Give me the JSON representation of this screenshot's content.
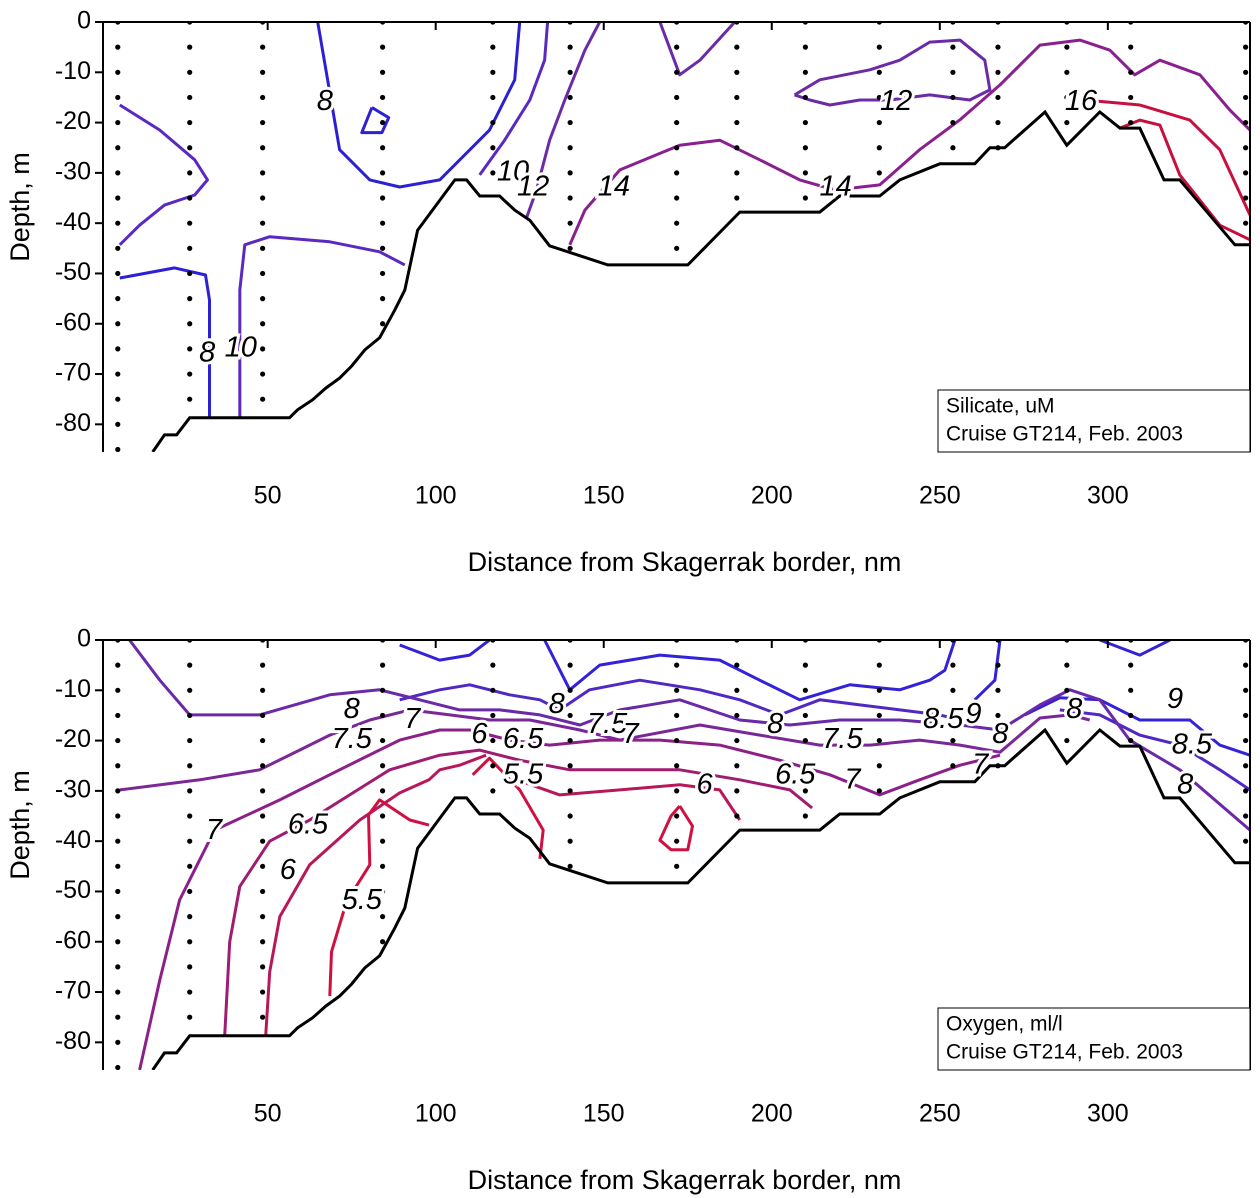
{
  "chart_data": [
    {
      "type": "contour",
      "xlabel": "Distance from Skagerrak border, nm",
      "ylabel": "Depth, m",
      "annotations": [
        "Silicate, uM",
        "Cruise GT214, Feb. 2003"
      ],
      "xlim": [
        1,
        342.3
      ],
      "ylim": [
        -85.5,
        0
      ],
      "xticks": [
        50,
        100,
        150,
        200,
        250,
        300
      ],
      "yticks": [
        0,
        -10,
        -20,
        -30,
        -40,
        -50,
        -60,
        -70,
        -80
      ],
      "stations": [
        5.4,
        26.8,
        48.5,
        84.2,
        117,
        140,
        171.7,
        189.6,
        210,
        232,
        253.9,
        267.3,
        287.8,
        306.8,
        341
      ],
      "sample_depths": [
        0,
        -5,
        -10,
        -15,
        -20,
        -25,
        -30,
        -35,
        -40,
        -45,
        -50,
        -55,
        -60,
        -65,
        -70,
        -75,
        -80,
        -85
      ],
      "bottom": {
        "color": "#000000",
        "x": [
          15.8,
          19.3,
          22.9,
          26.8,
          56.5,
          58.9,
          63.4,
          67.3,
          71.4,
          75,
          78.9,
          83.3,
          87.8,
          90.8,
          94.6,
          105.7,
          109.2,
          113.1,
          119,
          123.5,
          128,
          133.9,
          151.2,
          175,
          190.5,
          214.3,
          220.2,
          232.1,
          238.1,
          250,
          260.4,
          264.9,
          269.3,
          281.3,
          287.8,
          297.6,
          303.6,
          309.5,
          316.7,
          321.4,
          337.8,
          342.3
        ],
        "y": [
          -85.5,
          -82.1,
          -82.1,
          -78.7,
          -78.7,
          -77.1,
          -75.1,
          -72.8,
          -70.8,
          -68.4,
          -65.2,
          -62.8,
          -57.3,
          -53.3,
          -41.4,
          -31.4,
          -31.4,
          -34.6,
          -34.6,
          -37.4,
          -39.4,
          -44.5,
          -48.3,
          -48.3,
          -37.8,
          -37.8,
          -34.6,
          -34.6,
          -31.4,
          -28.2,
          -28.2,
          -25,
          -25,
          -17.9,
          -24.5,
          -17.9,
          -21.1,
          -21.1,
          -31.4,
          -31.4,
          -44.3,
          -44.3
        ]
      },
      "contours": [
        {
          "level": 10,
          "color": "#5a2ac0",
          "x": [
            6,
            17.9,
            28.3,
            32.1,
            28.3,
            19.3,
            11.9,
            6,
            null,
            41.7,
            41.7,
            43.2,
            50.6,
            68.5,
            83.3,
            90.8,
            null,
            133.3,
            132.4,
            128,
            120.5,
            113.1
          ],
          "y": [
            -16.5,
            -21.5,
            -27.4,
            -31.4,
            -34.4,
            -36.4,
            -40.4,
            -44.3,
            null,
            -78.7,
            -53.3,
            -44.3,
            -42.7,
            -43.7,
            -45.7,
            -48.3,
            null,
            0,
            -7.6,
            -15.5,
            -23.5,
            -30.4
          ],
          "label_at": [
            [
              42,
              -65
            ],
            [
              123,
              -30
            ]
          ]
        },
        {
          "level": 8,
          "color": "#2c20d4",
          "x": [
            6,
            22.3,
            31.5,
            32.7,
            32.7,
            null,
            64.9,
            71.4,
            80.4,
            89.3,
            101.2,
            116,
            123.5,
            125,
            null,
            81,
            86,
            84,
            78,
            81
          ],
          "y": [
            -50.9,
            -48.9,
            -50.3,
            -55.3,
            -78.7,
            null,
            0,
            -25.4,
            -31.4,
            -32.8,
            -31.4,
            -21.5,
            -11.5,
            0,
            null,
            -17,
            -19,
            -22,
            -22,
            -17
          ],
          "label_at": [
            [
              32,
              -66
            ],
            [
              67,
              -16
            ]
          ]
        },
        {
          "level": 12,
          "color": "#6c2aa6",
          "x": [
            148.8,
            144.4,
            138.4,
            133.9,
            130,
            127,
            null,
            166.7,
            172.6,
            178.6,
            189,
            null,
            206.8,
            214.3,
            229.2,
            238.1,
            247,
            256,
            263.4,
            264.9,
            258.9,
            247,
            235.1,
            226.2,
            217.3,
            211.3,
            206.8
          ],
          "y": [
            0,
            -5.6,
            -15.5,
            -23.5,
            -33.4,
            -39,
            null,
            0,
            -10.5,
            -7.6,
            0,
            null,
            -14.5,
            -11.5,
            -9.5,
            -7.6,
            -4,
            -3.6,
            -7.6,
            -13.5,
            -15.5,
            -14.5,
            -15.5,
            -15.5,
            -16.5,
            -15.5,
            -14.5
          ],
          "label_at": [
            [
              129,
              -33
            ],
            [
              237,
              -16
            ]
          ]
        },
        {
          "level": 14,
          "color": "#8a2090",
          "x": [
            139.9,
            144.4,
            154.8,
            172.6,
            184.5,
            196.4,
            208.3,
            218.8,
            232.1,
            244,
            255.9,
            267.9,
            279.8,
            291.7,
            300.6,
            308,
            315.5,
            327.4,
            336.3,
            342.3
          ],
          "y": [
            -44.3,
            -37.4,
            -29.4,
            -24.5,
            -23.5,
            -27.4,
            -31.4,
            -33.4,
            -32.4,
            -25.4,
            -19.5,
            -12.5,
            -4.6,
            -3.6,
            -5.6,
            -10.5,
            -7.6,
            -10.5,
            -17.5,
            -21.5
          ],
          "label_at": [
            [
              153,
              -33
            ],
            [
              219,
              -33
            ]
          ]
        },
        {
          "level": 16,
          "color": "#c81040",
          "x": [
            293.2,
            309.5,
            324.4,
            333.3,
            342.3,
            null,
            303.6,
            309.5,
            315.5,
            321.4,
            333.3,
            342.3
          ],
          "y": [
            -15.5,
            -16.5,
            -19.5,
            -25.4,
            -38.4,
            null,
            -21.1,
            -19.5,
            -20.5,
            -30.4,
            -40.4,
            -43.3
          ],
          "label_at": [
            [
              292,
              -16
            ]
          ]
        }
      ]
    },
    {
      "type": "contour",
      "xlabel": "Distance from Skagerrak border, nm",
      "ylabel": "Depth, m",
      "annotations": [
        "Oxygen, ml/l",
        "Cruise GT214, Feb. 2003"
      ],
      "xlim": [
        1,
        342.3
      ],
      "ylim": [
        -85.5,
        0
      ],
      "xticks": [
        50,
        100,
        150,
        200,
        250,
        300
      ],
      "yticks": [
        0,
        -10,
        -20,
        -30,
        -40,
        -50,
        -60,
        -70,
        -80
      ],
      "stations": [
        5.4,
        26.8,
        48.5,
        84.2,
        117,
        140,
        171.7,
        189.6,
        210,
        232,
        253.9,
        267.3,
        287.8,
        306.8,
        341
      ],
      "sample_depths": [
        0,
        -5,
        -10,
        -15,
        -20,
        -25,
        -30,
        -35,
        -40,
        -45,
        -50,
        -55,
        -60,
        -65,
        -70,
        -75,
        -80,
        -85
      ],
      "bottom": {
        "color": "#000000",
        "x": [
          15.8,
          19.3,
          22.9,
          26.8,
          56.5,
          58.9,
          63.4,
          67.3,
          71.4,
          75,
          78.9,
          83.3,
          87.8,
          90.8,
          94.6,
          105.7,
          109.2,
          113.1,
          119,
          123.5,
          128,
          133.9,
          151.2,
          175,
          190.5,
          214.3,
          220.2,
          232.1,
          238.1,
          250,
          260.4,
          264.9,
          269.3,
          281.3,
          287.8,
          297.6,
          303.6,
          309.5,
          316.7,
          321.4,
          337.8,
          342.3
        ],
        "y": [
          -85.5,
          -82.1,
          -82.1,
          -78.7,
          -78.7,
          -77.1,
          -75.1,
          -72.8,
          -70.8,
          -68.4,
          -65.2,
          -62.8,
          -57.3,
          -53.3,
          -41.4,
          -31.4,
          -31.4,
          -34.6,
          -34.6,
          -37.4,
          -39.4,
          -44.5,
          -48.3,
          -48.3,
          -37.8,
          -37.8,
          -34.6,
          -34.6,
          -31.4,
          -28.2,
          -28.2,
          -25,
          -25,
          -17.9,
          -24.5,
          -17.9,
          -21.1,
          -21.1,
          -31.4,
          -31.4,
          -44.3,
          -44.3
        ]
      },
      "contours": [
        {
          "level": 9,
          "color": "#3322d8",
          "x": [
            89.3,
            101.2,
            110.1,
            116,
            null,
            132.4,
            139.9,
            148.8,
            166.7,
            184.5,
            196.4,
            208.3,
            223.2,
            238.1,
            247,
            251.5,
            254.5,
            null,
            267.9,
            266.4,
            260.4,
            null,
            297.6,
            309.5,
            318.5,
            null,
            275.3,
            285.7,
            297.6,
            309.5,
            324.4,
            333.3,
            342.3
          ],
          "y": [
            -1,
            -4,
            -3,
            0,
            null,
            0,
            -9.9,
            -5,
            -3,
            -4,
            -8,
            -11.9,
            -8.9,
            -9.9,
            -8,
            -6,
            0,
            null,
            0,
            -8,
            -11.9,
            null,
            0,
            -3,
            0,
            null,
            -14.9,
            -11.5,
            -11.9,
            -15.9,
            -15.9,
            -20.9,
            -22.9
          ],
          "label_at": [
            [
              260,
              -15
            ],
            [
              320,
              -12
            ]
          ]
        },
        {
          "level": 8.5,
          "color": "#5028c4",
          "x": [
            89.3,
            101.2,
            110.1,
            122,
            131,
            136.9,
            145.8,
            160.7,
            178.6,
            190.5,
            202.4,
            214.3,
            226.2,
            238.1,
            250,
            256,
            null,
            285.7,
            297.6,
            309.5,
            321.4,
            333.3,
            342.3
          ],
          "y": [
            -11.9,
            -9.9,
            -8.9,
            -10.9,
            -11.9,
            -13.9,
            -9.9,
            -8,
            -9.9,
            -11.9,
            -14.9,
            -11.9,
            -12.9,
            -13.9,
            -14.9,
            -15.9,
            null,
            -13.9,
            -14.9,
            -18.9,
            -20.9,
            -25.8,
            -29.8
          ],
          "label_at": [
            [
              251,
              -16
            ],
            [
              325,
              -21
            ]
          ]
        },
        {
          "level": 8,
          "color": "#6a2aa8",
          "x": [
            8.9,
            17.9,
            26.8,
            47.6,
            68.5,
            83.3,
            95.2,
            107.1,
            119,
            131,
            142.9,
            154.8,
            172.6,
            190.5,
            205.4,
            220.2,
            238.1,
            256,
            267.9,
            279.8,
            288.7,
            297.6,
            306.5,
            321.4,
            342.3
          ],
          "y": [
            0,
            -8,
            -14.9,
            -14.9,
            -10.9,
            -9.9,
            -11.9,
            -13.9,
            -13.9,
            -14.9,
            -16.9,
            -13.9,
            -11.9,
            -15.9,
            -16.9,
            -15.9,
            -15.9,
            -16.9,
            -17.9,
            -12.9,
            -9.9,
            -11.9,
            -19.9,
            -25.8,
            -37.8
          ],
          "label_at": [
            [
              75,
              -14
            ],
            [
              136,
              -13
            ],
            [
              201,
              -17
            ],
            [
              268,
              -19
            ],
            [
              290,
              -14
            ],
            [
              323,
              -29
            ]
          ]
        },
        {
          "level": 7.5,
          "color": "#7a2898",
          "x": [
            6,
            29.8,
            47.6,
            59.5,
            68.5,
            80.4,
            92.3,
            104.2,
            116.1,
            128,
            142.9,
            154.8,
            178.6,
            196.4,
            214.3,
            229.2,
            244,
            256,
            267.9,
            279.8,
            288.7,
            294.6
          ],
          "y": [
            -29.8,
            -27.8,
            -25.8,
            -21.9,
            -18.9,
            -15.9,
            -13.9,
            -14.9,
            -15.9,
            -15.9,
            -17.9,
            -19.9,
            -16.9,
            -18.9,
            -20.9,
            -20.9,
            -19.9,
            -20.9,
            -22.3,
            -15.5,
            -14.9,
            -15.9
          ],
          "label_at": [
            [
              75,
              -20
            ],
            [
              151,
              -17
            ],
            [
              221,
              -20
            ]
          ]
        },
        {
          "level": 7,
          "color": "#8c2088",
          "x": [
            11.9,
            17.9,
            23.8,
            34.2,
            53.6,
            71.4,
            89.3,
            101.2,
            110.1,
            122,
            133.9,
            148.8,
            166.7,
            184.5,
            202.4,
            217.3,
            232.1,
            244,
            256,
            267.9
          ],
          "y": [
            -85.5,
            -67.6,
            -51.7,
            -37.8,
            -31.8,
            -25.8,
            -19.9,
            -17.9,
            -17.9,
            -19.9,
            -20.9,
            -19.9,
            -19.9,
            -20.9,
            -23.9,
            -26.8,
            -30.8,
            -27.8,
            -24.9,
            -22.9
          ],
          "label_at": [
            [
              34,
              -38
            ],
            [
              93,
              -16
            ],
            [
              158,
              -19
            ],
            [
              224,
              -28
            ],
            [
              262,
              -25
            ]
          ]
        },
        {
          "level": 6.5,
          "color": "#a01c70",
          "x": [
            37.2,
            38.7,
            41.7,
            50.6,
            62.5,
            74.4,
            86.3,
            101.2,
            113,
            125,
            139.9,
            154.8,
            172.6,
            190.5,
            205.4,
            212
          ],
          "y": [
            -78.7,
            -60,
            -49,
            -40,
            -35.8,
            -30.8,
            -25.8,
            -22.9,
            -21.9,
            -23.9,
            -25.8,
            -25.8,
            -25.8,
            -27.8,
            -29.8,
            -33.4
          ],
          "label_at": [
            [
              62,
              -37
            ],
            [
              126,
              -20
            ],
            [
              207,
              -27
            ]
          ]
        },
        {
          "level": 6,
          "color": "#b81858",
          "x": [
            49.4,
            50.6,
            53.6,
            62.5,
            77.4,
            89.3,
            98,
            101.2,
            107.1,
            115,
            null,
            125,
            136.9,
            154.8,
            172.6,
            184.5,
            190.5
          ],
          "y": [
            -78.7,
            -66,
            -55,
            -44.7,
            -35.8,
            -30.4,
            -27.8,
            -25.8,
            -24.9,
            -22.9,
            null,
            -28,
            -30.8,
            -29.8,
            -28.8,
            -29.8,
            -35.8
          ],
          "label_at": [
            [
              56,
              -46
            ],
            [
              113,
              -19
            ],
            [
              180,
              -29
            ]
          ]
        },
        {
          "level": 5.5,
          "color": "#d01040",
          "x": [
            68.5,
            69,
            73.5,
            80.4,
            80,
            83.3,
            92.3,
            98,
            null,
            131,
            132,
            125,
            116,
            111,
            null,
            172.6,
            176.4,
            175,
            170,
            166.7,
            170,
            172.6
          ],
          "y": [
            -70.8,
            -62,
            -52,
            -44.7,
            -34.8,
            -31.8,
            -35.8,
            -36.8,
            null,
            -43.5,
            -37.8,
            -29.8,
            -23.5,
            -26.8,
            null,
            -33,
            -37,
            -41.7,
            -41.7,
            -39.8,
            -35,
            -33
          ],
          "label_at": [
            [
              78,
              -52
            ],
            [
              126,
              -27
            ]
          ]
        }
      ]
    }
  ]
}
